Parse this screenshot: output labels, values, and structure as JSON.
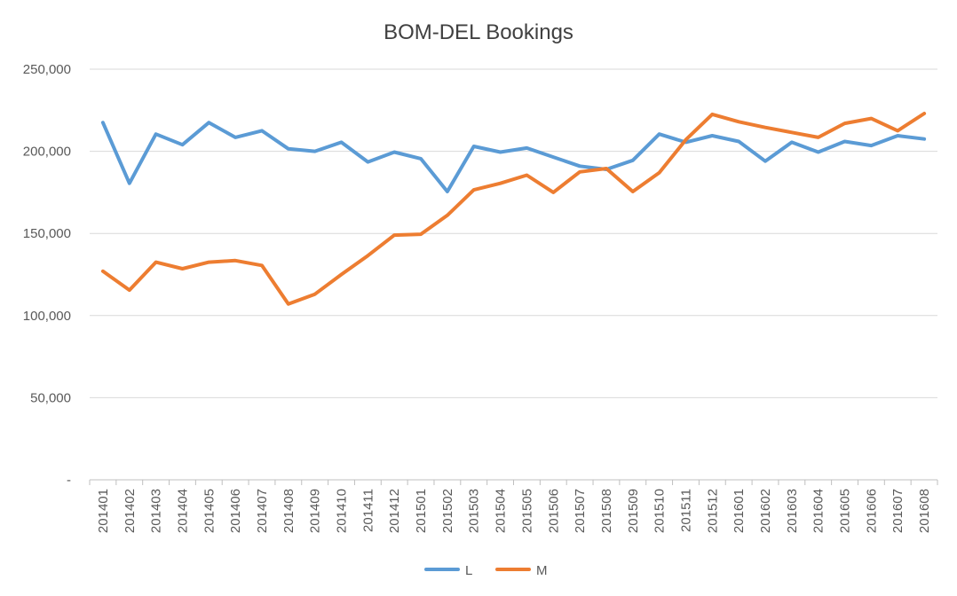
{
  "chart_data": {
    "type": "line",
    "title": "BOM-DEL Bookings",
    "xlabel": "",
    "ylabel": "",
    "ylim": [
      0,
      250000
    ],
    "ytick_values": [
      0,
      50000,
      100000,
      150000,
      200000,
      250000
    ],
    "ytick_labels": [
      "-",
      "50,000",
      "100,000",
      "150,000",
      "200,000",
      "250,000"
    ],
    "grid": true,
    "legend_position": "bottom",
    "categories": [
      "201401",
      "201402",
      "201403",
      "201404",
      "201405",
      "201406",
      "201407",
      "201408",
      "201409",
      "201410",
      "201411",
      "201412",
      "201501",
      "201502",
      "201503",
      "201504",
      "201505",
      "201506",
      "201507",
      "201508",
      "201509",
      "201510",
      "201511",
      "201512",
      "201601",
      "201602",
      "201603",
      "201604",
      "201605",
      "201606",
      "201607",
      "201608"
    ],
    "series": [
      {
        "name": "L",
        "color": "#5B9BD5",
        "values": [
          217500,
          180500,
          210500,
          204000,
          217500,
          208500,
          212500,
          201500,
          200000,
          205500,
          193500,
          199500,
          195500,
          175500,
          203000,
          199500,
          202000,
          196500,
          191000,
          189000,
          194500,
          210500,
          205500,
          209500,
          206000,
          194000,
          205500,
          199500,
          206000,
          203500,
          209500,
          207500
        ]
      },
      {
        "name": "M",
        "color": "#ED7D31",
        "values": [
          127000,
          115500,
          132500,
          128500,
          132500,
          133500,
          130500,
          107000,
          113000,
          125000,
          136500,
          149000,
          149500,
          161000,
          176500,
          180500,
          185500,
          175000,
          187500,
          189500,
          175500,
          187000,
          207000,
          222500,
          218000,
          214500,
          211500,
          208500,
          217000,
          220000,
          212500,
          223000
        ]
      }
    ]
  }
}
